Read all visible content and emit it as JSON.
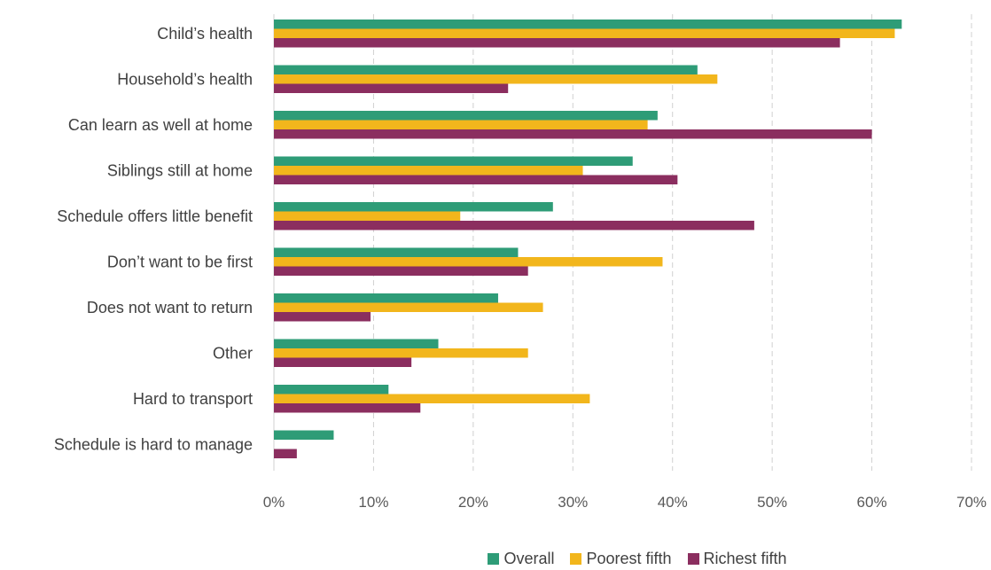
{
  "chart_data": {
    "type": "bar",
    "orientation": "horizontal",
    "categories": [
      "Child’s health",
      "Household’s health",
      "Can learn as well at home",
      "Siblings still at home",
      "Schedule offers little benefit",
      "Don’t want to be first",
      "Does not want to return",
      "Other",
      "Hard to transport",
      "Schedule is hard to manage"
    ],
    "series": [
      {
        "name": "Overall",
        "color": "#2e9c77",
        "values": [
          63,
          42.5,
          38.5,
          36,
          28,
          24.5,
          22.5,
          16.5,
          11.5,
          6
        ]
      },
      {
        "name": "Poorest fifth",
        "color": "#f2b61c",
        "values": [
          62.3,
          44.5,
          37.5,
          31,
          18.7,
          39,
          27,
          25.5,
          31.7,
          0
        ]
      },
      {
        "name": "Richest fifth",
        "color": "#8b2e5f",
        "values": [
          56.8,
          23.5,
          60,
          40.5,
          48.2,
          25.5,
          9.7,
          13.8,
          14.7,
          2.3
        ]
      }
    ],
    "xlim": [
      0,
      70
    ],
    "xticks": [
      "0%",
      "10%",
      "20%",
      "30%",
      "40%",
      "50%",
      "60%",
      "70%"
    ],
    "grid": true,
    "legend_position": "bottom"
  }
}
